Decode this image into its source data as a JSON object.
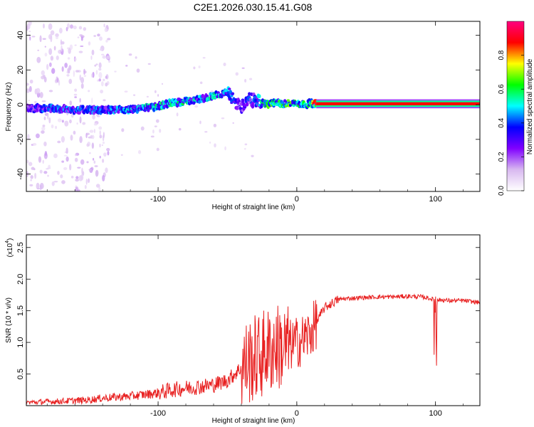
{
  "title": "C2E1.2026.030.15.41.G08",
  "chart_data": [
    {
      "type": "heatmap",
      "xlabel": "Height of straight line (km)",
      "ylabel": "Frequency (Hz)",
      "xlim": [
        -195,
        132
      ],
      "ylim": [
        -50,
        48
      ],
      "xticks": [
        -100,
        0,
        100
      ],
      "yticks": [
        -40,
        -20,
        0,
        20,
        40
      ],
      "colorbar": {
        "label": "Normalized spectral amplitude",
        "range": [
          0,
          1
        ],
        "ticks": [
          0.0,
          0.2,
          0.4,
          0.6,
          0.8
        ],
        "colors": [
          "#ffffff",
          "#d8b8f0",
          "#8000ff",
          "#0000ff",
          "#00ffff",
          "#00ff00",
          "#ffff00",
          "#ff0000",
          "#ff0080"
        ]
      },
      "ridge": {
        "x": [
          -195,
          -180,
          -160,
          -140,
          -120,
          -100,
          -90,
          -80,
          -70,
          -60,
          -50,
          -45,
          -40,
          -35,
          -30,
          -25,
          -20,
          -15,
          -10,
          -5,
          0,
          5,
          10,
          14,
          20,
          40,
          60,
          80,
          90,
          95,
          100,
          120,
          132
        ],
        "y": [
          -2,
          -2,
          -3,
          -3,
          -3,
          -1,
          1,
          2,
          3,
          5,
          7,
          2,
          -1,
          3,
          2,
          1,
          0.5,
          1,
          0.5,
          1,
          0.5,
          0,
          1,
          0.5,
          0.5,
          0.5,
          0.5,
          0.5,
          0.5,
          1,
          0.5,
          0.5,
          0.5
        ],
        "amplitude": [
          0.3,
          0.4,
          0.4,
          0.4,
          0.45,
          0.5,
          0.55,
          0.5,
          0.45,
          0.5,
          0.45,
          0.35,
          0.3,
          0.35,
          0.4,
          0.5,
          0.6,
          0.55,
          0.55,
          0.6,
          0.6,
          0.55,
          0.55,
          0.9,
          0.9,
          0.9,
          0.9,
          0.9,
          0.9,
          0.95,
          0.9,
          0.9,
          0.9
        ]
      }
    },
    {
      "type": "line",
      "xlabel": "Height of straight line (km)",
      "ylabel": "SNR (10 * v/v)",
      "y_multiplier": "(x10",
      "y_multiplier_exp": "4",
      "y_multiplier_close": ")",
      "xlim": [
        -195,
        132
      ],
      "ylim": [
        0,
        2.7
      ],
      "xticks": [
        -100,
        0,
        100
      ],
      "yticks": [
        0.5,
        1.0,
        1.5,
        2.0,
        2.5
      ],
      "color": "#e82020",
      "series": [
        {
          "x": [
            -195,
            -170,
            -150,
            -140,
            -120,
            -100,
            -90,
            -80,
            -70,
            -60,
            -50,
            -45,
            -40,
            -35,
            -30,
            -25,
            -22,
            -20,
            -15,
            -10,
            -5,
            0,
            5,
            10,
            15,
            20,
            30,
            40,
            50,
            60,
            70,
            80,
            90,
            95,
            98,
            100,
            101,
            102,
            105,
            110,
            120,
            132
          ],
          "y": [
            0.05,
            0.07,
            0.09,
            0.12,
            0.15,
            0.2,
            0.25,
            0.28,
            0.3,
            0.33,
            0.4,
            0.5,
            0.6,
            0.7,
            0.75,
            0.8,
            0.9,
            0.85,
            0.95,
            0.9,
            0.95,
            1.0,
            1.05,
            1.15,
            1.35,
            1.55,
            1.68,
            1.7,
            1.71,
            1.72,
            1.72,
            1.73,
            1.72,
            1.7,
            1.68,
            1.6,
            1.66,
            1.67,
            1.67,
            1.66,
            1.66,
            1.63
          ]
        }
      ]
    }
  ]
}
